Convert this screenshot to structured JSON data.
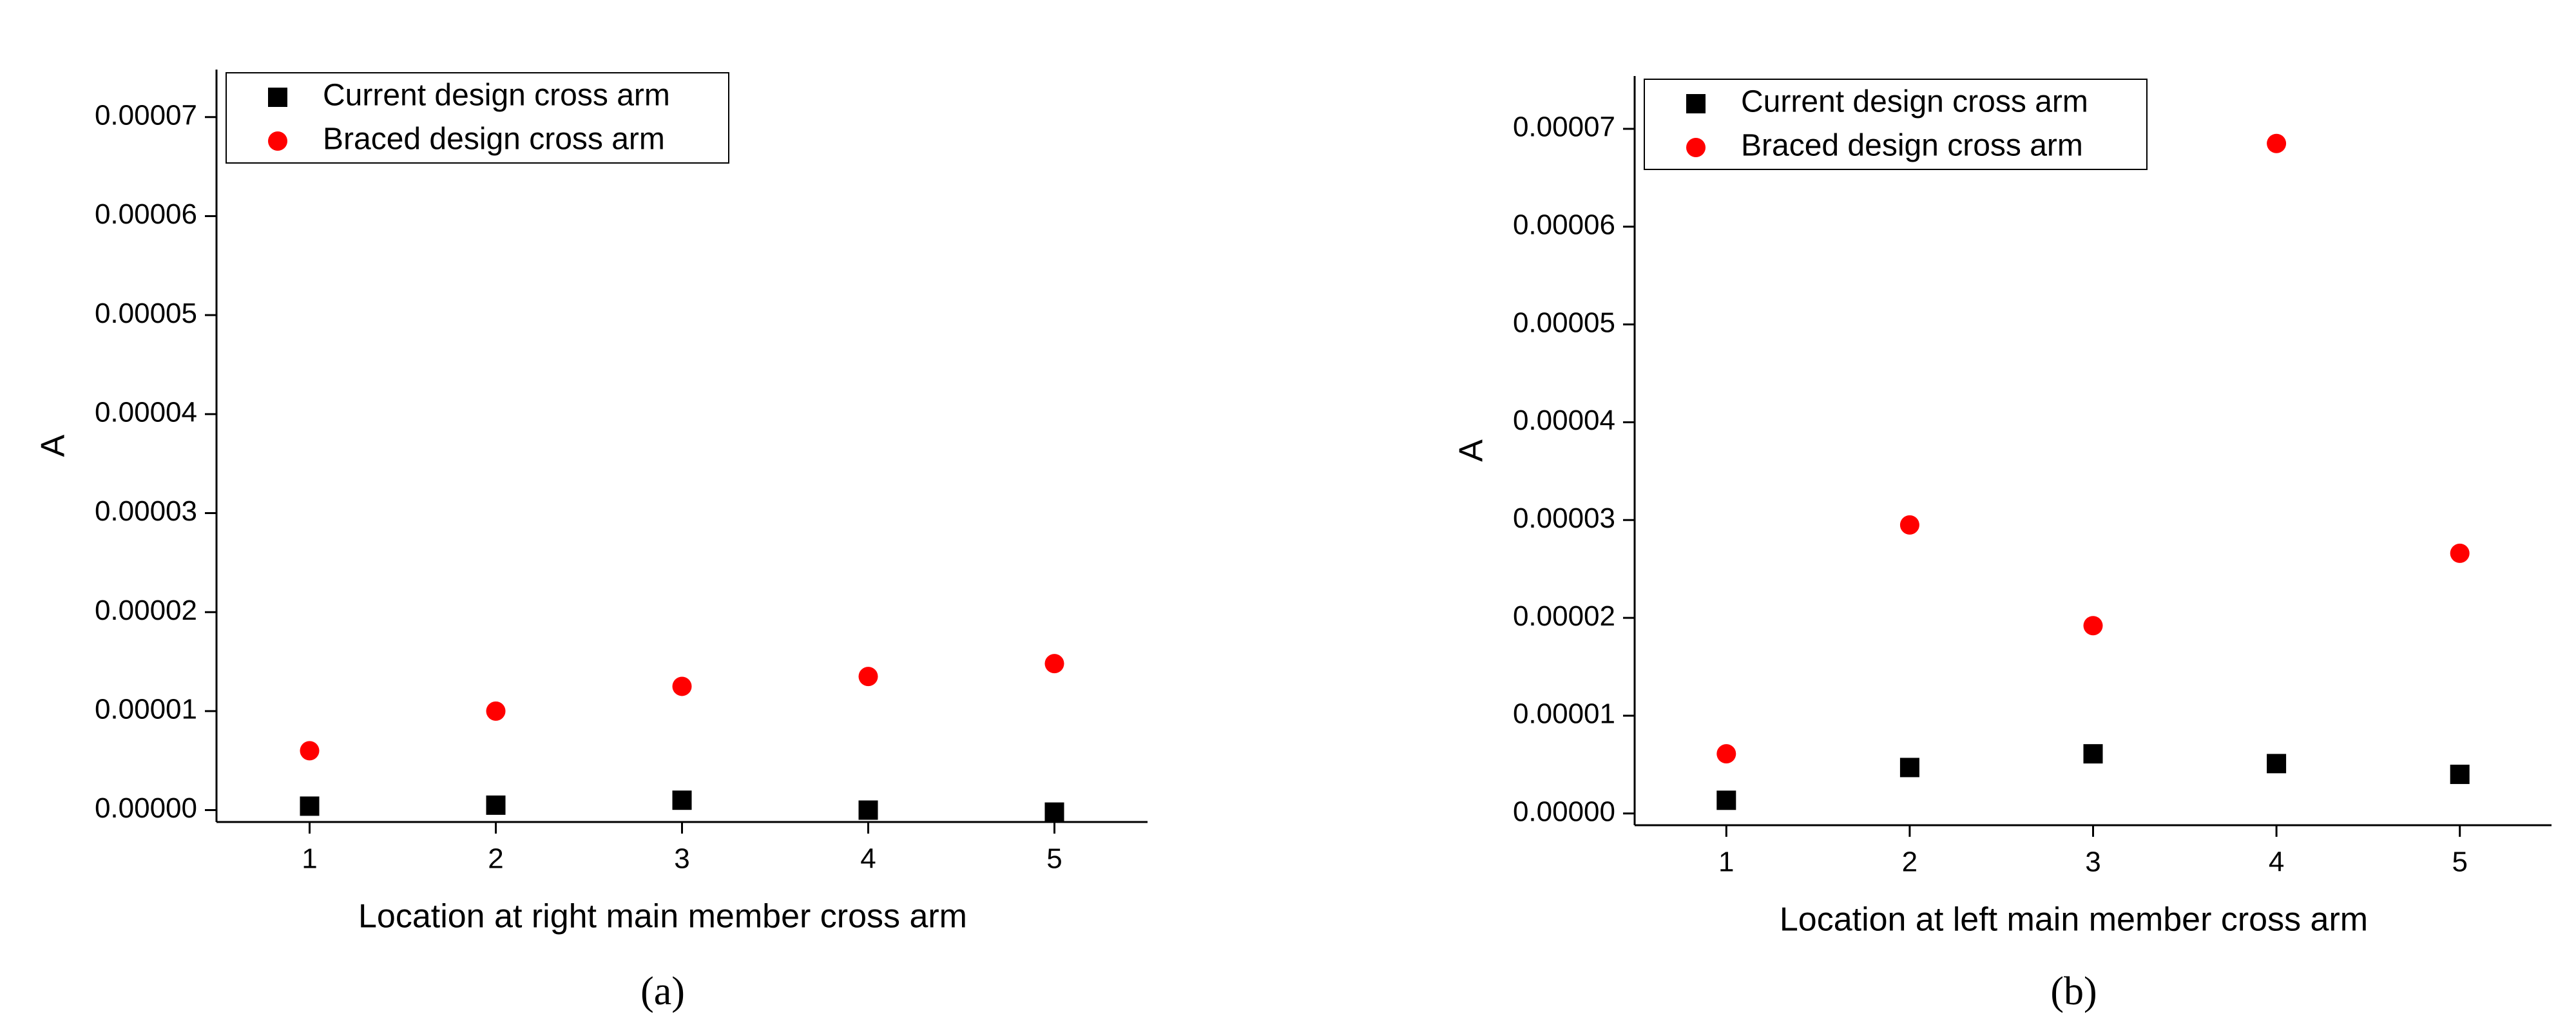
{
  "chart_data": [
    {
      "type": "scatter",
      "caption": "(a)",
      "x_label": "Location at right main member cross arm",
      "y_label": "A",
      "x": [
        1,
        2,
        3,
        4,
        5
      ],
      "xlim": [
        0.5,
        5.5
      ],
      "xticks": [
        1,
        2,
        3,
        4,
        5
      ],
      "ylim": [
        -1.2e-06,
        7.48e-05
      ],
      "yticks": [
        {
          "value": 0,
          "label": "0.00000"
        },
        {
          "value": 1e-05,
          "label": "0.00001"
        },
        {
          "value": 2e-05,
          "label": "0.00002"
        },
        {
          "value": 3e-05,
          "label": "0.00003"
        },
        {
          "value": 4e-05,
          "label": "0.00004"
        },
        {
          "value": 5e-05,
          "label": "0.00005"
        },
        {
          "value": 6e-05,
          "label": "0.00006"
        },
        {
          "value": 7e-05,
          "label": "0.00007"
        }
      ],
      "legend": "upper left",
      "series": [
        {
          "name": "Current design cross arm",
          "color": "#000000",
          "marker": "square",
          "values": [
            4e-07,
            5e-07,
            1e-06,
            0.0,
            -2e-07
          ]
        },
        {
          "name": "Braced design cross arm",
          "color": "#ff0000",
          "marker": "circle",
          "values": [
            6e-06,
            1e-05,
            1.25e-05,
            1.35e-05,
            1.48e-05
          ]
        }
      ]
    },
    {
      "type": "scatter",
      "caption": "(b)",
      "x_label": "Location at left main member cross arm",
      "y_label": "A",
      "x": [
        1,
        2,
        3,
        4,
        5
      ],
      "xlim": [
        0.5,
        5.5
      ],
      "xticks": [
        1,
        2,
        3,
        4,
        5
      ],
      "ylim": [
        -1.2e-06,
        7.54e-05
      ],
      "yticks": [
        {
          "value": 0,
          "label": "0.00000"
        },
        {
          "value": 1e-05,
          "label": "0.00001"
        },
        {
          "value": 2e-05,
          "label": "0.00002"
        },
        {
          "value": 3e-05,
          "label": "0.00003"
        },
        {
          "value": 4e-05,
          "label": "0.00004"
        },
        {
          "value": 5e-05,
          "label": "0.00005"
        },
        {
          "value": 6e-05,
          "label": "0.00006"
        },
        {
          "value": 7e-05,
          "label": "0.00007"
        }
      ],
      "legend": "upper left",
      "series": [
        {
          "name": "Current design cross arm",
          "color": "#000000",
          "marker": "square",
          "values": [
            1.35e-06,
            4.7e-06,
            6.1e-06,
            5.1e-06,
            4e-06
          ]
        },
        {
          "name": "Braced design cross arm",
          "color": "#ff0000",
          "marker": "circle",
          "values": [
            6.1e-06,
            2.95e-05,
            1.92e-05,
            6.85e-05,
            2.66e-05
          ]
        }
      ]
    }
  ]
}
